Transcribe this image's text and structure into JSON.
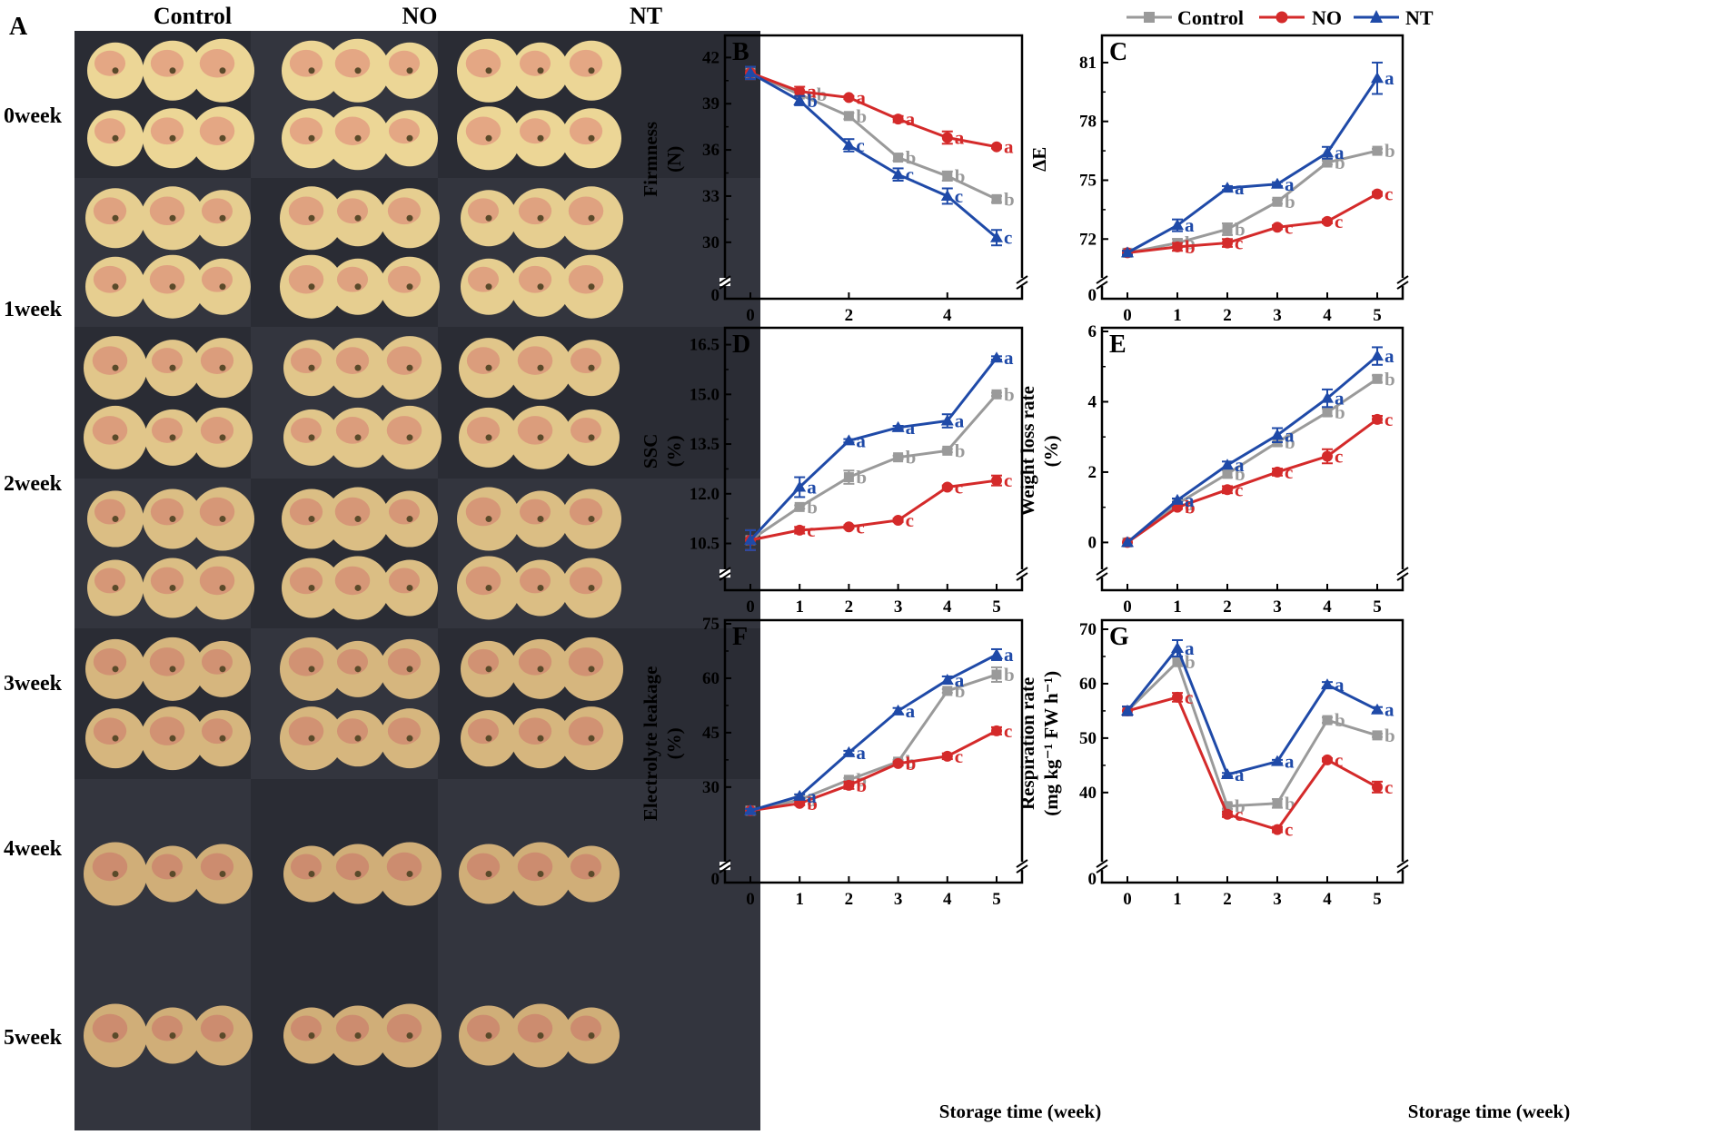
{
  "panel_a": {
    "label": "A",
    "columns": [
      "Control",
      "NO",
      "NT"
    ],
    "rows": [
      "0week",
      "1week",
      "2week",
      "3week",
      "4week",
      "5week"
    ]
  },
  "legend": {
    "entries": [
      {
        "name": "Control",
        "color": "#9a9a9a",
        "marker": "square"
      },
      {
        "name": "NO",
        "color": "#d42a2a",
        "marker": "circle"
      },
      {
        "name": "NT",
        "color": "#1f4aa8",
        "marker": "triangle"
      }
    ]
  },
  "x_axis_label": "Storage time (week)",
  "chart_data": [
    {
      "id": "B",
      "label": "B",
      "type": "line",
      "ylabel_lines": [
        "Firmness",
        "(N)"
      ],
      "ylim": [
        28.3,
        43.2
      ],
      "yticks": [
        "42",
        "39",
        "36",
        "33",
        "30"
      ],
      "y_break_zero": "0",
      "xticks": [
        "0",
        "2",
        "4"
      ],
      "series": [
        {
          "name": "Control",
          "x": [
            0,
            1,
            2,
            3,
            4,
            5
          ],
          "values": [
            41.0,
            39.6,
            38.2,
            35.5,
            34.3,
            32.8
          ],
          "err": [
            0.4,
            0.2,
            0.2,
            0.2,
            0.3,
            0.2
          ],
          "letters": [
            "",
            "ab",
            "b",
            "b",
            "b",
            "b"
          ]
        },
        {
          "name": "NO",
          "x": [
            0,
            1,
            2,
            3,
            4,
            5
          ],
          "values": [
            41.0,
            39.8,
            39.4,
            38.0,
            36.8,
            36.2
          ],
          "err": [
            0.4,
            0.3,
            0.1,
            0.2,
            0.4,
            0.1
          ],
          "letters": [
            "",
            "a",
            "a",
            "a",
            "a",
            "a"
          ]
        },
        {
          "name": "NT",
          "x": [
            0,
            1,
            2,
            3,
            4,
            5
          ],
          "values": [
            41.0,
            39.2,
            36.3,
            34.4,
            33.0,
            30.3
          ],
          "err": [
            0.4,
            0.3,
            0.4,
            0.4,
            0.5,
            0.5
          ],
          "letters": [
            "",
            "b",
            "c",
            "c",
            "c",
            "c"
          ]
        }
      ]
    },
    {
      "id": "C",
      "label": "C",
      "type": "line",
      "ylabel_lines": [
        "ΔE"
      ],
      "ylim": [
        70.5,
        82.2
      ],
      "yticks": [
        "81",
        "78",
        "75",
        "72"
      ],
      "y_break_zero": "0",
      "xticks": [
        "0",
        "1",
        "2",
        "3",
        "4",
        "5"
      ],
      "series": [
        {
          "name": "Control",
          "x": [
            0,
            1,
            2,
            3,
            4,
            5
          ],
          "values": [
            71.3,
            71.8,
            72.5,
            73.9,
            75.9,
            76.5
          ],
          "err": [
            0.1,
            0.2,
            0.3,
            0.1,
            0.1,
            0.1
          ],
          "letters": [
            "",
            "b",
            "b",
            "b",
            "b",
            "b"
          ]
        },
        {
          "name": "NO",
          "x": [
            0,
            1,
            2,
            3,
            4,
            5
          ],
          "values": [
            71.3,
            71.6,
            71.8,
            72.6,
            72.9,
            74.3
          ],
          "err": [
            0.1,
            0.2,
            0.2,
            0.1,
            0.1,
            0.1
          ],
          "letters": [
            "",
            "b",
            "c",
            "c",
            "c",
            "c"
          ]
        },
        {
          "name": "NT",
          "x": [
            0,
            1,
            2,
            3,
            4,
            5
          ],
          "values": [
            71.3,
            72.7,
            74.6,
            74.8,
            76.4,
            80.2
          ],
          "err": [
            0.1,
            0.3,
            0.1,
            0.1,
            0.3,
            0.8
          ],
          "letters": [
            "",
            "a",
            "a",
            "a",
            "a",
            "a"
          ]
        }
      ]
    },
    {
      "id": "D",
      "label": "D",
      "type": "line",
      "ylabel_lines": [
        "SSC",
        "(%)"
      ],
      "ylim": [
        10.0,
        16.9
      ],
      "yticks": [
        "16.5",
        "15.0",
        "13.5",
        "12.0",
        "10.5"
      ],
      "y_break_zero": "",
      "xticks": [
        "0",
        "1",
        "2",
        "3",
        "4",
        "5"
      ],
      "series": [
        {
          "name": "Control",
          "x": [
            0,
            1,
            2,
            3,
            4,
            5
          ],
          "values": [
            10.6,
            11.6,
            12.5,
            13.1,
            13.3,
            15.0
          ],
          "err": [
            0.3,
            0.05,
            0.2,
            0.05,
            0.05,
            0.05
          ],
          "letters": [
            "",
            "b",
            "b",
            "b",
            "b",
            "b"
          ]
        },
        {
          "name": "NO",
          "x": [
            0,
            1,
            2,
            3,
            4,
            5
          ],
          "values": [
            10.6,
            10.9,
            11.0,
            11.2,
            12.2,
            12.4
          ],
          "err": [
            0.3,
            0.1,
            0.05,
            0.05,
            0.05,
            0.15
          ],
          "letters": [
            "",
            "c",
            "c",
            "c",
            "c",
            "c"
          ]
        },
        {
          "name": "NT",
          "x": [
            0,
            1,
            2,
            3,
            4,
            5
          ],
          "values": [
            10.6,
            12.2,
            13.6,
            14.0,
            14.2,
            16.1
          ],
          "err": [
            0.3,
            0.3,
            0.05,
            0.05,
            0.2,
            0.05
          ],
          "letters": [
            "",
            "a",
            "a",
            "a",
            "a",
            "a"
          ]
        }
      ]
    },
    {
      "id": "E",
      "label": "E",
      "type": "line",
      "ylabel_lines": [
        "Weight loss rate",
        "(%)"
      ],
      "ylim": [
        -0.5,
        6.0
      ],
      "yticks": [
        "6",
        "4",
        "2",
        "0"
      ],
      "y_break_zero": "",
      "xticks": [
        "0",
        "1",
        "2",
        "3",
        "4",
        "5"
      ],
      "series": [
        {
          "name": "Control",
          "x": [
            0,
            1,
            2,
            3,
            4,
            5
          ],
          "values": [
            0,
            1.1,
            1.95,
            2.85,
            3.7,
            4.65
          ],
          "err": [
            0,
            0.05,
            0.1,
            0.1,
            0.1,
            0.1
          ],
          "letters": [
            "",
            "a",
            "b",
            "b",
            "b",
            "b"
          ]
        },
        {
          "name": "NO",
          "x": [
            0,
            1,
            2,
            3,
            4,
            5
          ],
          "values": [
            0,
            1.0,
            1.5,
            2.0,
            2.45,
            3.5
          ],
          "err": [
            0,
            0.05,
            0.1,
            0.1,
            0.2,
            0.1
          ],
          "letters": [
            "",
            "b",
            "c",
            "c",
            "c",
            "c"
          ]
        },
        {
          "name": "NT",
          "x": [
            0,
            1,
            2,
            3,
            4,
            5
          ],
          "values": [
            0,
            1.2,
            2.2,
            3.05,
            4.1,
            5.3
          ],
          "err": [
            0,
            0.05,
            0.1,
            0.2,
            0.25,
            0.25
          ],
          "letters": [
            "",
            "a",
            "a",
            "a",
            "a",
            "a"
          ]
        }
      ]
    },
    {
      "id": "F",
      "label": "F",
      "type": "line",
      "ylabel_lines": [
        "Electrolyte leakage",
        "(%)"
      ],
      "ylim": [
        12.0,
        75.0
      ],
      "yticks": [
        "75",
        "60",
        "45",
        "30"
      ],
      "y_break_zero": "0",
      "xticks": [
        "0",
        "1",
        "2",
        "3",
        "4",
        "5"
      ],
      "series": [
        {
          "name": "Control",
          "x": [
            0,
            1,
            2,
            3,
            4,
            5
          ],
          "values": [
            23.5,
            26.5,
            32.0,
            37.0,
            56.5,
            61.0
          ],
          "err": [
            0.5,
            0.5,
            0.5,
            0.5,
            0.5,
            2.0
          ],
          "letters": [
            "",
            "a",
            "b",
            "b",
            "b",
            "b"
          ]
        },
        {
          "name": "NO",
          "x": [
            0,
            1,
            2,
            3,
            4,
            5
          ],
          "values": [
            23.5,
            25.5,
            30.5,
            36.5,
            38.5,
            45.5
          ],
          "err": [
            0.5,
            0.5,
            1.0,
            0.5,
            0.8,
            1.0
          ],
          "letters": [
            "",
            "b",
            "b",
            "b",
            "c",
            "c"
          ]
        },
        {
          "name": "NT",
          "x": [
            0,
            1,
            2,
            3,
            4,
            5
          ],
          "values": [
            23.5,
            27.5,
            39.5,
            51.0,
            59.5,
            66.5
          ],
          "err": [
            0.5,
            0.5,
            0.5,
            0.8,
            1.0,
            1.5
          ],
          "letters": [
            "",
            "a",
            "a",
            "a",
            "a",
            "a"
          ]
        }
      ]
    },
    {
      "id": "G",
      "label": "G",
      "type": "line",
      "ylabel_lines": [
        "Respiration rate",
        "(mg kg⁻¹ FW h⁻¹)"
      ],
      "ylim": [
        29.0,
        71.0
      ],
      "yticks": [
        "70",
        "60",
        "50",
        "40"
      ],
      "y_break_zero": "0",
      "xticks": [
        "0",
        "1",
        "2",
        "3",
        "4",
        "5"
      ],
      "series": [
        {
          "name": "Control",
          "x": [
            0,
            1,
            2,
            3,
            4,
            5
          ],
          "values": [
            55.0,
            64.0,
            37.5,
            38.0,
            53.3,
            50.5
          ],
          "err": [
            0.8,
            0.8,
            0.5,
            0.8,
            0.5,
            0.3
          ],
          "letters": [
            "",
            "b",
            "b",
            "b",
            "b",
            "b"
          ]
        },
        {
          "name": "NO",
          "x": [
            0,
            1,
            2,
            3,
            4,
            5
          ],
          "values": [
            55.0,
            57.5,
            36.0,
            33.2,
            46.0,
            41.0
          ],
          "err": [
            0.8,
            0.8,
            0.5,
            0.5,
            0.3,
            1.0
          ],
          "letters": [
            "",
            "c",
            "c",
            "c",
            "c",
            "c"
          ]
        },
        {
          "name": "NT",
          "x": [
            0,
            1,
            2,
            3,
            4,
            5
          ],
          "values": [
            55.0,
            66.5,
            43.3,
            45.7,
            59.8,
            55.2
          ],
          "err": [
            0.8,
            1.5,
            0.3,
            0.3,
            0.5,
            0.5
          ],
          "letters": [
            "",
            "a",
            "a",
            "a",
            "a",
            "a"
          ]
        }
      ]
    }
  ]
}
